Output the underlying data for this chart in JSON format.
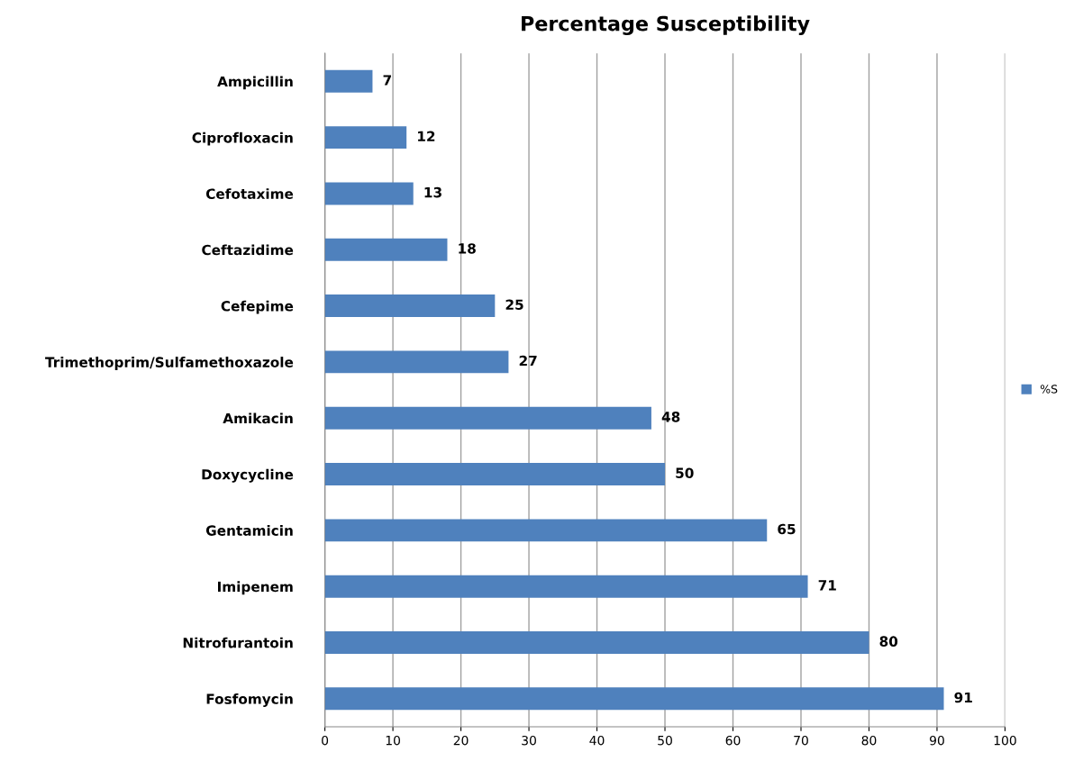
{
  "chart_data": {
    "type": "bar",
    "orientation": "horizontal",
    "title": "Percentage Susceptibility",
    "categories": [
      "Ampicillin",
      "Ciprofloxacin",
      "Cefotaxime",
      "Ceftazidime",
      "Cefepime",
      "Trimethoprim/Sulfamethoxazole",
      "Amikacin",
      "Doxycycline",
      "Gentamicin",
      "Imipenem",
      "Nitrofurantoin",
      "Fosfomycin"
    ],
    "series": [
      {
        "name": "%S",
        "color": "#4f81bd",
        "values": [
          7,
          12,
          13,
          18,
          25,
          27,
          48,
          50,
          65,
          71,
          80,
          91
        ]
      }
    ],
    "xlim": [
      0,
      100
    ],
    "xticks": [
      0,
      10,
      20,
      30,
      40,
      50,
      60,
      70,
      80,
      90,
      100
    ],
    "grid": "x",
    "legend": "right",
    "data_labels": true
  }
}
